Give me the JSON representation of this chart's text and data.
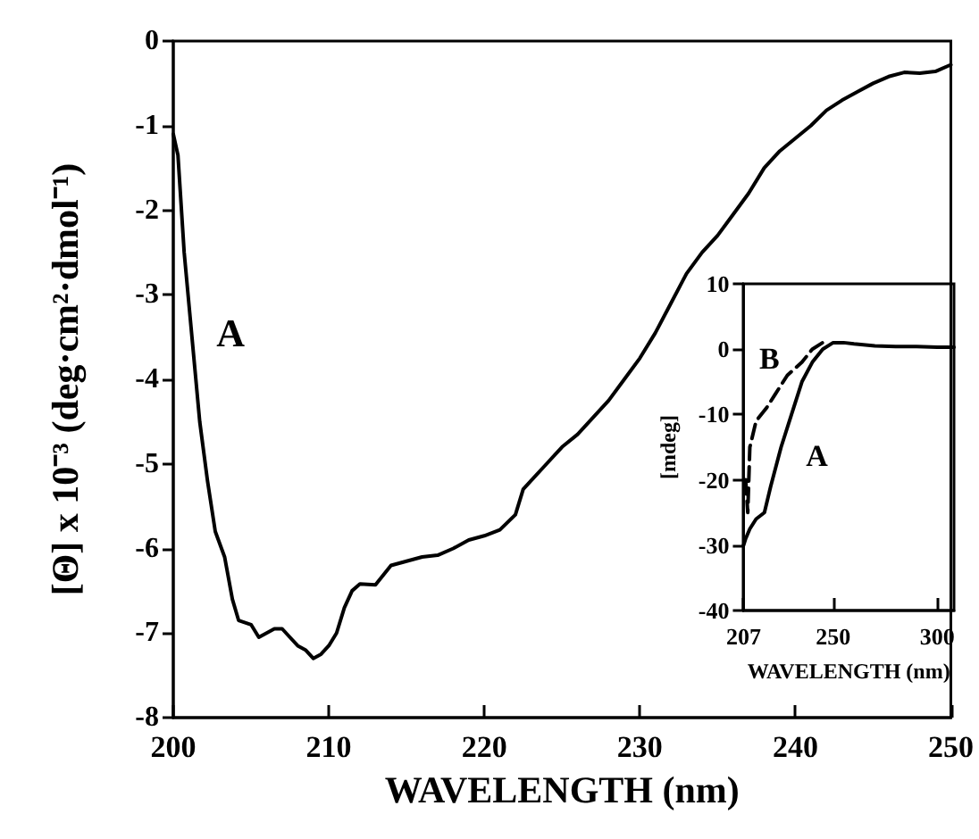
{
  "chart_data": [
    {
      "type": "line",
      "xlabel": "WAVELENGTH (nm)",
      "ylabel": "[Θ] x 10⁻³ (deg·cm²·dmol⁻¹)",
      "xlim": [
        200,
        250
      ],
      "xticks": [
        200,
        210,
        220,
        230,
        240,
        250
      ],
      "ylim": [
        -8,
        0
      ],
      "yticks": [
        0,
        -1,
        -2,
        -3,
        -4,
        -5,
        -6,
        -7,
        -8
      ],
      "grid": false,
      "series": [
        {
          "name": "A",
          "color": "#000000",
          "x": [
            200,
            200.3,
            200.7,
            201.2,
            201.7,
            202.2,
            202.7,
            203.3,
            203.8,
            204.2,
            205,
            205.5,
            206,
            206.5,
            207,
            207.5,
            208,
            208.5,
            209,
            209.5,
            210,
            210.5,
            211,
            211.5,
            212,
            213,
            214,
            215,
            216,
            217,
            218,
            219,
            220,
            221,
            222,
            222.5,
            223,
            224,
            225,
            226,
            227,
            228,
            229,
            230,
            231,
            232,
            233,
            234,
            235,
            236,
            237,
            238,
            239,
            240,
            241,
            242,
            243,
            244,
            245,
            246,
            247,
            248,
            249,
            250
          ],
          "values": [
            -1.1,
            -1.35,
            -2.5,
            -3.5,
            -4.5,
            -5.2,
            -5.8,
            -6.1,
            -6.6,
            -6.85,
            -6.9,
            -7.05,
            -7.0,
            -6.95,
            -6.95,
            -7.05,
            -7.15,
            -7.2,
            -7.3,
            -7.25,
            -7.15,
            -7.0,
            -6.7,
            -6.5,
            -6.42,
            -6.43,
            -6.2,
            -6.15,
            -6.1,
            -6.08,
            -6.0,
            -5.9,
            -5.85,
            -5.78,
            -5.6,
            -5.3,
            -5.2,
            -5.0,
            -4.8,
            -4.65,
            -4.45,
            -4.25,
            -4.0,
            -3.75,
            -3.45,
            -3.1,
            -2.75,
            -2.5,
            -2.3,
            -2.05,
            -1.8,
            -1.5,
            -1.3,
            -1.15,
            -1.0,
            -0.82,
            -0.7,
            -0.6,
            -0.5,
            -0.42,
            -0.37,
            -0.38,
            -0.36,
            -0.28
          ]
        }
      ]
    },
    {
      "type": "line",
      "xlabel": "WAVELENGTH (nm)",
      "ylabel": "[mdeg]",
      "xlim": [
        207,
        308
      ],
      "xticks": [
        207,
        250,
        300
      ],
      "ylim": [
        -40,
        10
      ],
      "yticks": [
        10,
        0,
        -10,
        -20,
        -30,
        -40
      ],
      "grid": false,
      "series": [
        {
          "name": "A",
          "color": "#000000",
          "line_style": "solid",
          "x": [
            207,
            208,
            210,
            213,
            217,
            220,
            225,
            230,
            235,
            240,
            245,
            250,
            255,
            260,
            270,
            280,
            290,
            300,
            308
          ],
          "values": [
            -30,
            -29,
            -27.5,
            -26,
            -25,
            -21,
            -15,
            -10,
            -5,
            -2,
            0,
            1,
            1,
            0.8,
            0.5,
            0.4,
            0.4,
            0.3,
            0.3
          ]
        },
        {
          "name": "B",
          "color": "#000000",
          "line_style": "dashed",
          "x": [
            208,
            209,
            210,
            213,
            218,
            222,
            228,
            235,
            240,
            245
          ],
          "values": [
            -20,
            -25,
            -15,
            -11,
            -9,
            -7,
            -4,
            -2,
            0,
            1
          ]
        }
      ]
    }
  ]
}
